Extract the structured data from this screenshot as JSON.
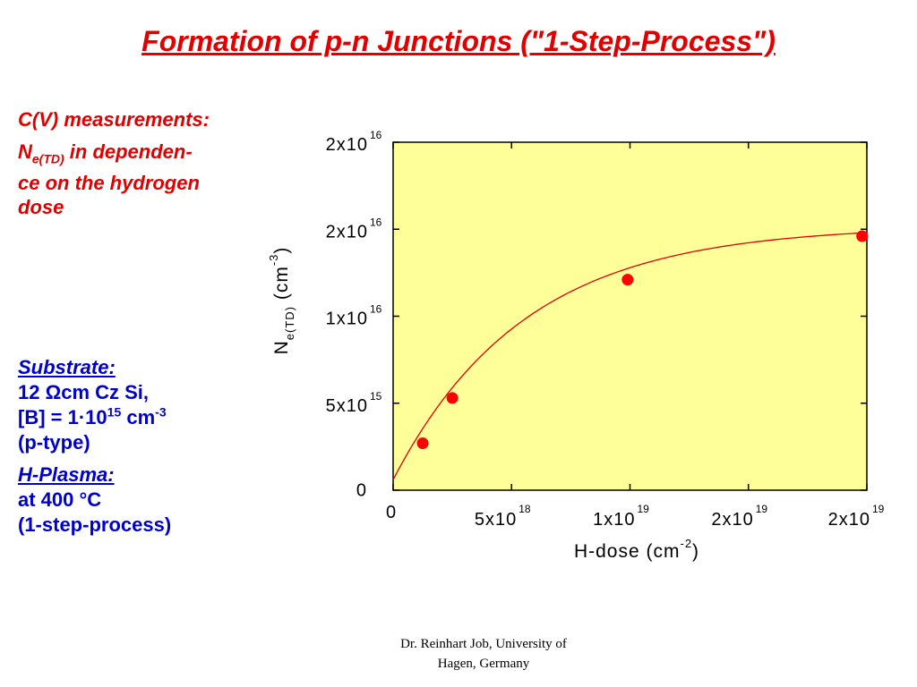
{
  "slide": {
    "title": "Formation of p-n Junctions (\"1-Step-Process\")",
    "left_text": {
      "heading": "C(V) measurements:",
      "ne_base": "N",
      "ne_sub": "e(TD)",
      "line2": " in dependen-",
      "line3": "ce on the hydrogen",
      "line4": "dose"
    },
    "substrate": {
      "head": "Substrate:",
      "line1": "12 Ωcm Cz Si,",
      "b_prefix": "[B] = 1·10",
      "b_exp": "15",
      "b_unit": " cm",
      "b_unit_exp": "-3",
      "line3": "(p-type)"
    },
    "plasma": {
      "head": "H-Plasma:",
      "line1": "at 400 °C",
      "line2": "(1-step-process)"
    },
    "footer": {
      "line1": "Dr. Reinhart Job, University of",
      "line2": "Hagen, Germany"
    }
  },
  "chart_data": {
    "type": "scatter",
    "x_unit": "cm^-2",
    "y_unit": "cm^-3",
    "xlim": [
      0,
      2e+19
    ],
    "ylim": [
      0,
      2e+16
    ],
    "x_ticks": [
      {
        "value": 0,
        "mantissa": "0",
        "exp": ""
      },
      {
        "value": 5e+18,
        "mantissa": "5x10",
        "exp": "18"
      },
      {
        "value": 1e+19,
        "mantissa": "1x10",
        "exp": "19"
      },
      {
        "value": 1.5e+19,
        "mantissa": "2x10",
        "exp": "19"
      },
      {
        "value": 2e+19,
        "mantissa": "2x10",
        "exp": "19"
      }
    ],
    "y_ticks": [
      {
        "value": 0,
        "mantissa": "0",
        "exp": ""
      },
      {
        "value": 5000000000000000.0,
        "mantissa": "5x10",
        "exp": "15"
      },
      {
        "value": 1e+16,
        "mantissa": "1x10",
        "exp": "16"
      },
      {
        "value": 1.5e+16,
        "mantissa": "2x10",
        "exp": "16"
      },
      {
        "value": 2e+16,
        "mantissa": "2x10",
        "exp": "16"
      }
    ],
    "xlabel": {
      "base": "H-dose (cm",
      "exp": "-2",
      "tail": ")"
    },
    "ylabel": {
      "base": "N",
      "sub": "e(TD)",
      "mid": "  (cm",
      "exp": "-3",
      "tail": ")"
    },
    "series": [
      {
        "points": [
          {
            "x": 1.25e+18,
            "y": 2700000000000000.0
          },
          {
            "x": 2.5e+18,
            "y": 5300000000000000.0
          },
          {
            "x": 9.9e+18,
            "y": 1.21e+16
          },
          {
            "x": 1.98e+19,
            "y": 1.46e+16
          }
        ],
        "color": "#ff0000"
      }
    ],
    "fit_curve": {
      "color": "#dd0000",
      "y0": 600000000000000.0,
      "ymax": 1.52e+16,
      "k": 1.8e-19
    },
    "plot_background": "#ffff99",
    "grid": false
  }
}
